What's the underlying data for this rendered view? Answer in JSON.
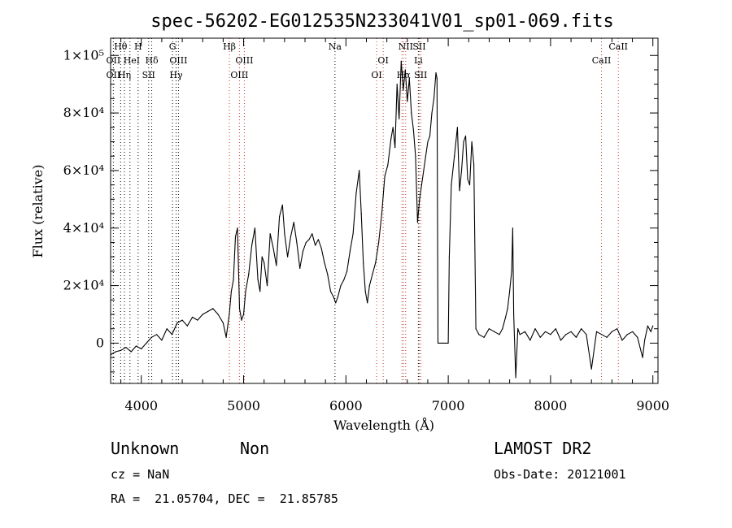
{
  "chart_data": {
    "type": "line",
    "title": "spec-56202-EG012535N233041V01_sp01-069.fits",
    "xlabel": "Wavelength (Å)",
    "ylabel": "Flux (relative)",
    "xlim": [
      3700,
      9050
    ],
    "ylim": [
      -14000,
      106000
    ],
    "x_ticks": [
      {
        "value": 4000,
        "label": "4000"
      },
      {
        "value": 5000,
        "label": "5000"
      },
      {
        "value": 6000,
        "label": "6000"
      },
      {
        "value": 7000,
        "label": "7000"
      },
      {
        "value": 8000,
        "label": "8000"
      },
      {
        "value": 9000,
        "label": "9000"
      }
    ],
    "y_ticks": [
      {
        "value": 0,
        "label": "0"
      },
      {
        "value": 20000,
        "label": "2×10⁴"
      },
      {
        "value": 40000,
        "label": "4×10⁴"
      },
      {
        "value": 60000,
        "label": "6×10⁴"
      },
      {
        "value": 80000,
        "label": "8×10⁴"
      },
      {
        "value": 100000,
        "label": "1×10⁵"
      }
    ],
    "emission_lines": [
      {
        "label": "Hθ",
        "wavelength": 3798,
        "row": 0,
        "color": "#000000"
      },
      {
        "label": "OII",
        "wavelength": 3727,
        "row": 1,
        "color": "#000000"
      },
      {
        "label": "OII",
        "wavelength": 3727,
        "row": 2,
        "color": "#000000"
      },
      {
        "label": "Hη",
        "wavelength": 3835,
        "row": 2,
        "color": "#000000"
      },
      {
        "label": "He",
        "wavelength": 3889,
        "row": 1,
        "color": "#000000"
      },
      {
        "label": "H",
        "wavelength": 3969,
        "row": 0,
        "color": "#000000"
      },
      {
        "label": "I",
        "wavelength": 3970,
        "row": 1,
        "color": "#000000"
      },
      {
        "label": "Hδ",
        "wavelength": 4102,
        "row": 1,
        "color": "#000000"
      },
      {
        "label": "SII",
        "wavelength": 4072,
        "row": 2,
        "color": "#000000"
      },
      {
        "label": "G",
        "wavelength": 4305,
        "row": 0,
        "color": "#000000"
      },
      {
        "label": "OIII",
        "wavelength": 4363,
        "row": 1,
        "color": "#000000"
      },
      {
        "label": "Hγ",
        "wavelength": 4340,
        "row": 2,
        "color": "#000000"
      },
      {
        "label": "Hβ",
        "wavelength": 4861,
        "row": 0,
        "color": "#000000"
      },
      {
        "label": "OIII",
        "wavelength": 5007,
        "row": 1,
        "color": "#000000"
      },
      {
        "label": "OIII",
        "wavelength": 4959,
        "row": 2,
        "color": "#000000"
      },
      {
        "label": "Na",
        "wavelength": 5893,
        "row": 0,
        "color": "#000000"
      },
      {
        "label": "OI",
        "wavelength": 6364,
        "row": 1,
        "color": "#000000"
      },
      {
        "label": "OI",
        "wavelength": 6300,
        "row": 2,
        "color": "#000000"
      },
      {
        "label": "NII",
        "wavelength": 6584,
        "row": 0,
        "color": "#000000"
      },
      {
        "label": "Hα",
        "wavelength": 6563,
        "row": 2,
        "color": "#000000"
      },
      {
        "label": "SII",
        "wavelength": 6717,
        "row": 0,
        "color": "#000000"
      },
      {
        "label": "Li",
        "wavelength": 6708,
        "row": 1,
        "color": "#000000"
      },
      {
        "label": "SII",
        "wavelength": 6731,
        "row": 2,
        "color": "#000000"
      },
      {
        "label": "CaII",
        "wavelength": 8662,
        "row": 0,
        "color": "#000000"
      },
      {
        "label": "CaII",
        "wavelength": 8498,
        "row": 1,
        "color": "#000000"
      }
    ],
    "marker_lines": [
      {
        "wavelength": 3727,
        "color": "#000000"
      },
      {
        "wavelength": 3798,
        "color": "#000000"
      },
      {
        "wavelength": 3835,
        "color": "#000000"
      },
      {
        "wavelength": 3889,
        "color": "#000000"
      },
      {
        "wavelength": 3969,
        "color": "#000000"
      },
      {
        "wavelength": 4072,
        "color": "#000000"
      },
      {
        "wavelength": 4102,
        "color": "#000000"
      },
      {
        "wavelength": 4305,
        "color": "#000000"
      },
      {
        "wavelength": 4340,
        "color": "#000000"
      },
      {
        "wavelength": 4363,
        "color": "#000000"
      },
      {
        "wavelength": 4861,
        "color": "#c0392b"
      },
      {
        "wavelength": 4959,
        "color": "#c0392b"
      },
      {
        "wavelength": 5007,
        "color": "#c0392b"
      },
      {
        "wavelength": 5893,
        "color": "#000000"
      },
      {
        "wavelength": 6300,
        "color": "#c0392b"
      },
      {
        "wavelength": 6364,
        "color": "#c0392b"
      },
      {
        "wavelength": 6548,
        "color": "#c0392b"
      },
      {
        "wavelength": 6563,
        "color": "#c0392b"
      },
      {
        "wavelength": 6584,
        "color": "#c0392b"
      },
      {
        "wavelength": 6708,
        "color": "#000000"
      },
      {
        "wavelength": 6717,
        "color": "#c0392b"
      },
      {
        "wavelength": 6731,
        "color": "#c0392b"
      },
      {
        "wavelength": 8498,
        "color": "#c0392b"
      },
      {
        "wavelength": 8662,
        "color": "#c0392b"
      }
    ],
    "series": [
      {
        "x": [
          3700,
          3750,
          3800,
          3850,
          3900,
          3950,
          4000,
          4050,
          4100,
          4150,
          4200,
          4250,
          4300,
          4350,
          4400,
          4450,
          4500,
          4550,
          4600,
          4650,
          4700,
          4750,
          4800,
          4830,
          4860,
          4880,
          4900,
          4920,
          4940,
          4960,
          4980,
          5000,
          5020,
          5050,
          5080,
          5110,
          5140,
          5160,
          5180,
          5200,
          5230,
          5260,
          5290,
          5320,
          5350,
          5380,
          5400,
          5430,
          5460,
          5490,
          5520,
          5550,
          5580,
          5610,
          5640,
          5670,
          5700,
          5730,
          5760,
          5790,
          5820,
          5850,
          5880,
          5900,
          5920,
          5950,
          5980,
          6010,
          6040,
          6070,
          6100,
          6130,
          6150,
          6170,
          6190,
          6210,
          6230,
          6260,
          6290,
          6320,
          6350,
          6380,
          6410,
          6440,
          6460,
          6480,
          6500,
          6520,
          6540,
          6560,
          6580,
          6600,
          6620,
          6640,
          6660,
          6680,
          6700,
          6720,
          6740,
          6760,
          6780,
          6800,
          6820,
          6840,
          6860,
          6880,
          6890,
          6900,
          6950,
          7000,
          7010,
          7030,
          7060,
          7090,
          7110,
          7130,
          7150,
          7170,
          7190,
          7210,
          7230,
          7250,
          7270,
          7300,
          7350,
          7400,
          7450,
          7500,
          7530,
          7560,
          7580,
          7600,
          7620,
          7630,
          7640,
          7660,
          7680,
          7700,
          7750,
          7800,
          7850,
          7900,
          7950,
          8000,
          8050,
          8100,
          8150,
          8200,
          8250,
          8300,
          8350,
          8400,
          8450,
          8500,
          8550,
          8600,
          8650,
          8700,
          8750,
          8800,
          8850,
          8900,
          8920,
          8950,
          8980,
          9000
        ],
        "y": [
          -4000,
          -3000,
          -2500,
          -1500,
          -3000,
          -1000,
          -2000,
          0,
          2000,
          3000,
          1000,
          5000,
          3000,
          7000,
          8000,
          6000,
          9000,
          8000,
          10000,
          11000,
          12000,
          10000,
          7000,
          2000,
          10000,
          18000,
          22000,
          37000,
          40000,
          12000,
          8000,
          10000,
          18000,
          24000,
          34000,
          40000,
          22000,
          18000,
          30000,
          28000,
          20000,
          38000,
          33000,
          27000,
          44000,
          48000,
          38000,
          30000,
          37000,
          42000,
          35000,
          26000,
          32000,
          35000,
          36000,
          38000,
          34000,
          36000,
          33000,
          28000,
          24000,
          18000,
          16000,
          14000,
          16000,
          20000,
          22000,
          25000,
          32000,
          38000,
          52000,
          60000,
          45000,
          28000,
          18000,
          14000,
          20000,
          24000,
          28000,
          35000,
          45000,
          58000,
          62000,
          71000,
          75000,
          68000,
          90000,
          78000,
          98000,
          88000,
          95000,
          84000,
          92000,
          80000,
          74000,
          65000,
          42000,
          50000,
          55000,
          60000,
          65000,
          70000,
          72000,
          80000,
          85000,
          94000,
          92000,
          0,
          0,
          0,
          30000,
          55000,
          65000,
          75000,
          53000,
          60000,
          70000,
          72000,
          57000,
          55000,
          70000,
          62000,
          5000,
          3000,
          2000,
          5000,
          4000,
          3000,
          5000,
          9000,
          12000,
          18000,
          25000,
          40000,
          10000,
          -12000,
          5000,
          3000,
          4000,
          1000,
          5000,
          2000,
          4000,
          3000,
          5000,
          1000,
          3000,
          4000,
          2000,
          5000,
          3000,
          -9000,
          4000,
          3000,
          2000,
          4000,
          5000,
          1000,
          3000,
          4000,
          2000,
          -5000,
          1000,
          6000,
          4000,
          6000
        ]
      }
    ]
  },
  "info": {
    "object_class": "Unknown",
    "object_subclass": "Non",
    "survey": "LAMOST DR2",
    "redshift_line": "cz = NaN",
    "obs_date_line": "Obs-Date: 20121001",
    "coords_line": "RA =  21.05704, DEC =  21.85785"
  }
}
